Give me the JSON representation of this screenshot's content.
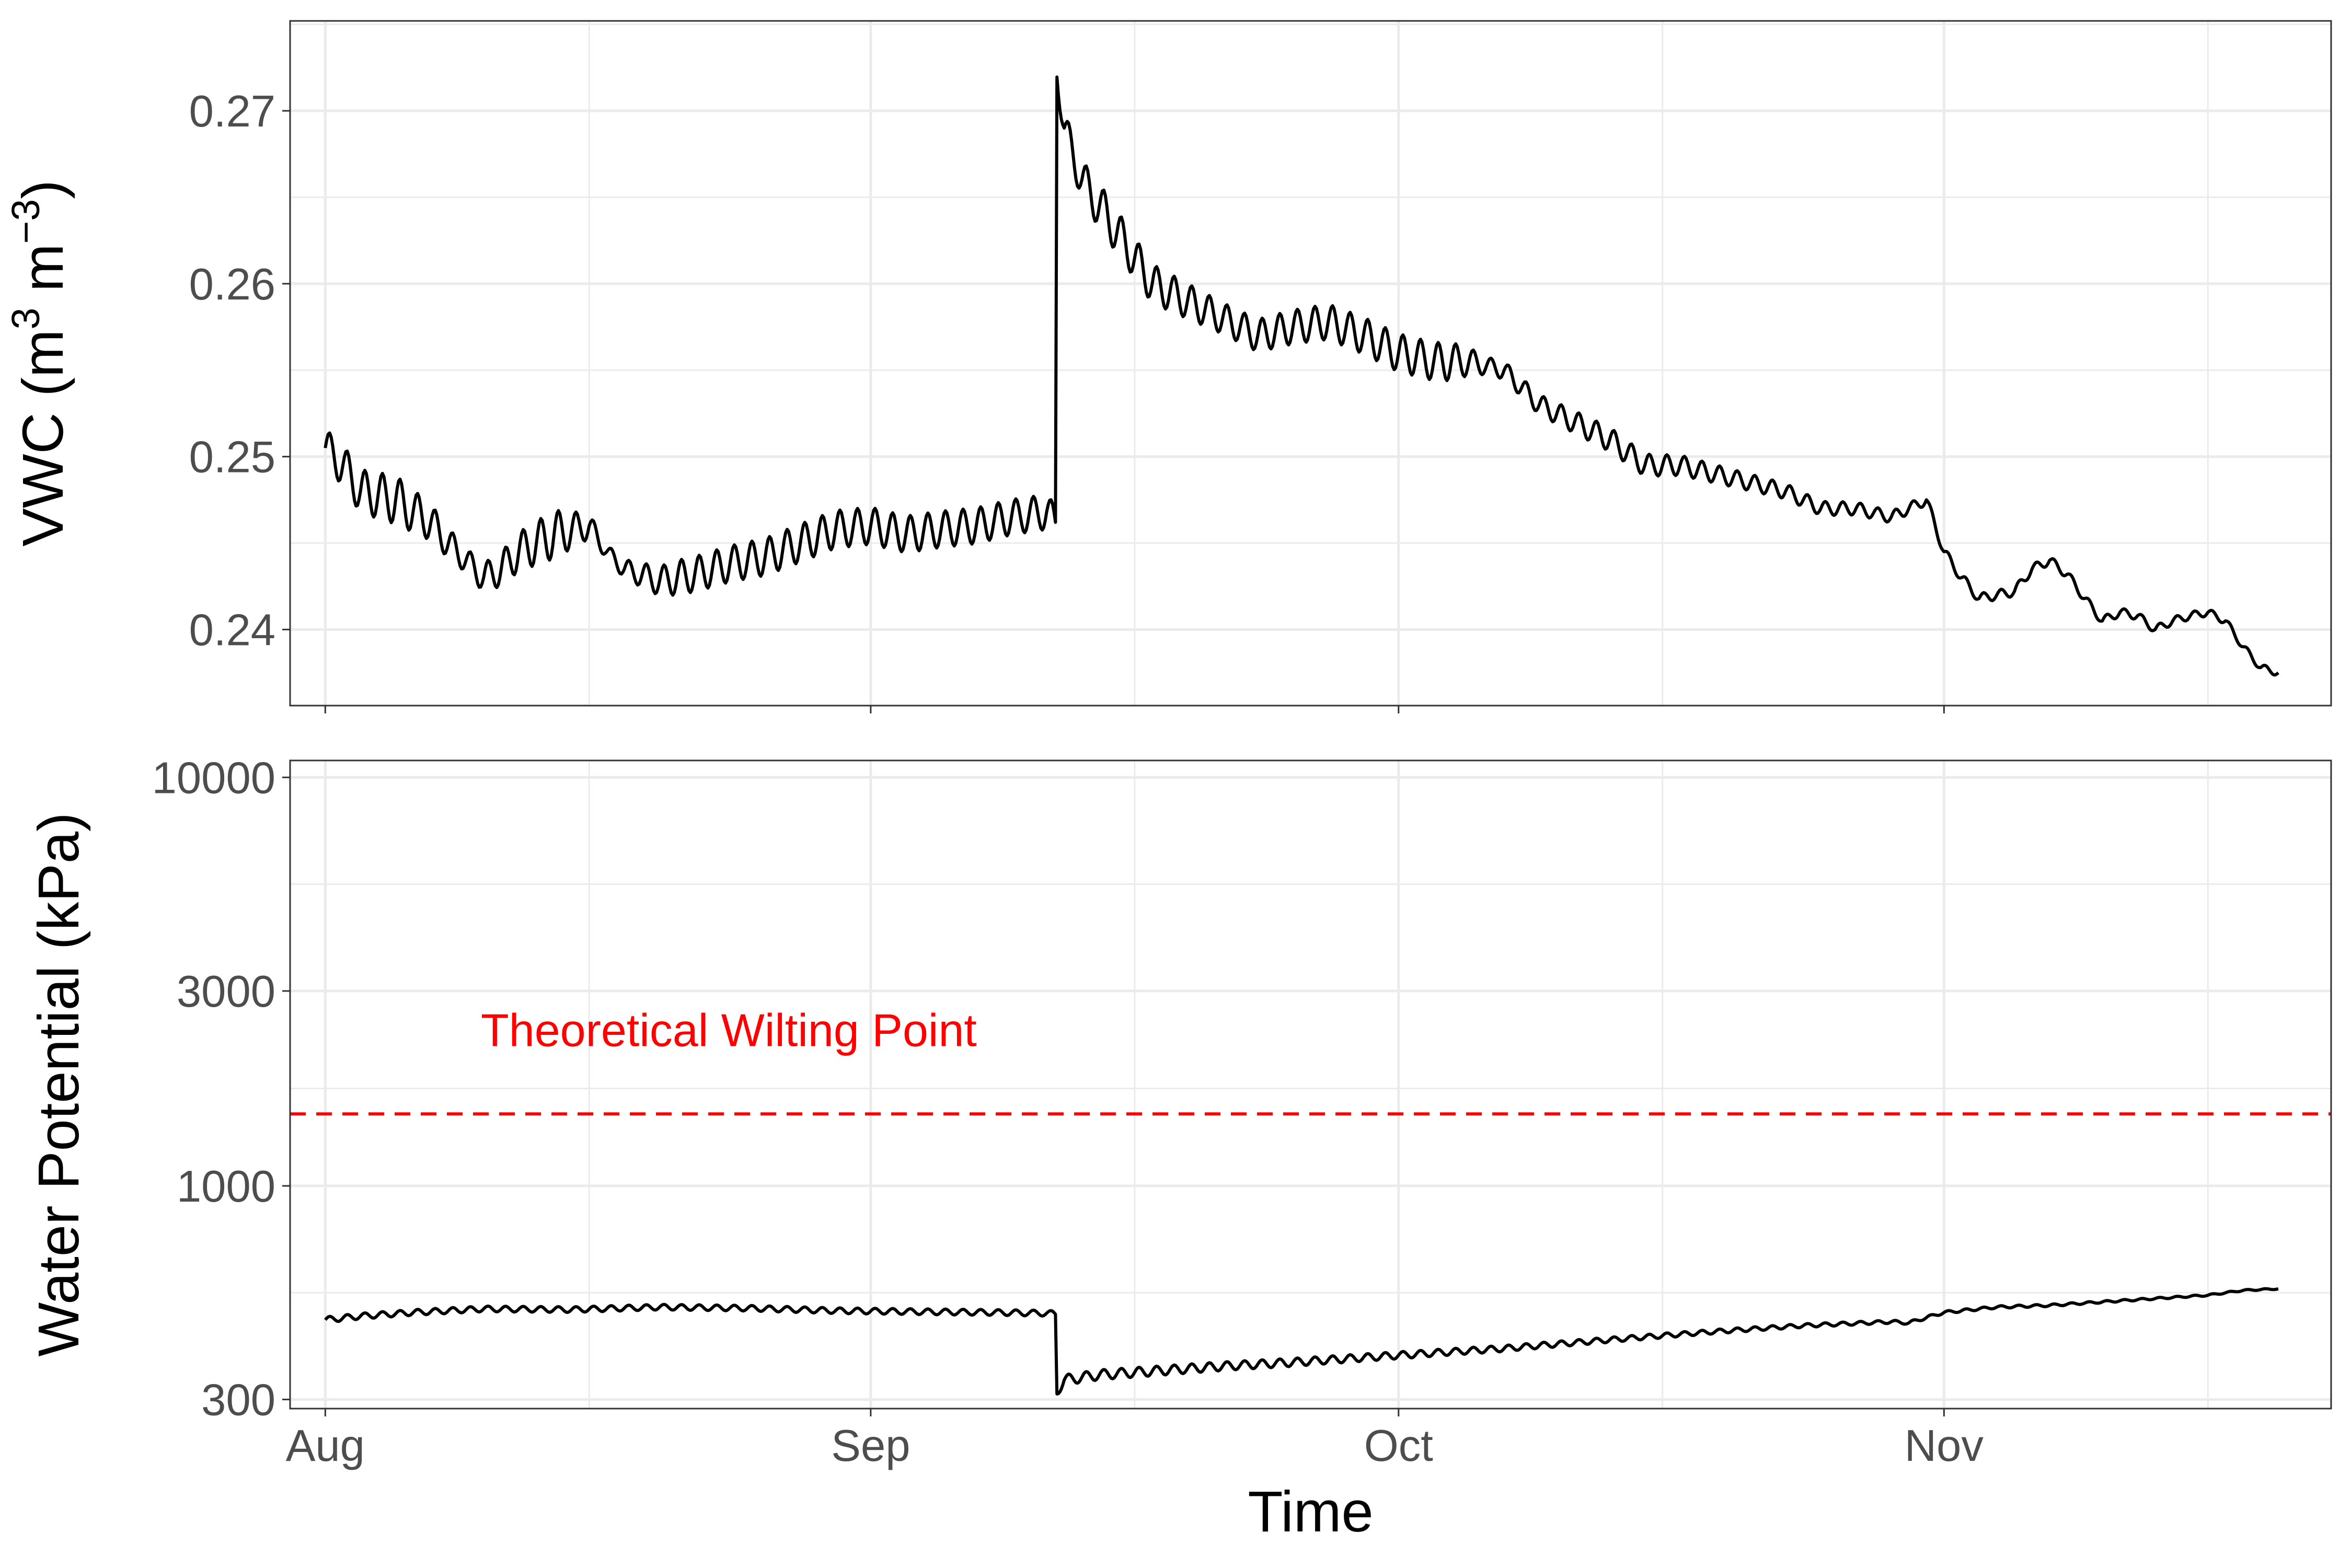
{
  "chart_data": [
    {
      "type": "line",
      "title": "",
      "xlabel": "",
      "ylabel": "VWC (m3 m−3)",
      "ylabel_parts": [
        "VWC (m",
        "3",
        " m",
        "−3",
        ")"
      ],
      "xlim": [
        "2021-07-30",
        "2021-11-23"
      ],
      "ylim": [
        0.2356,
        0.2752
      ],
      "y_ticks": [
        {
          "value": 0.24,
          "label": "0.24"
        },
        {
          "value": 0.25,
          "label": "0.25"
        },
        {
          "value": 0.26,
          "label": "0.26"
        },
        {
          "value": 0.27,
          "label": "0.27"
        }
      ],
      "y_scale": "linear",
      "grid": true,
      "series": [
        {
          "diurnal_amplitude": [
            [
              "2021-08-01",
              0.0011
            ],
            [
              "2021-08-05",
              0.0014
            ],
            [
              "2021-08-09",
              0.0007
            ],
            [
              "2021-08-14",
              0.0014
            ],
            [
              "2021-08-17",
              0.0004
            ],
            [
              "2021-08-21",
              0.001
            ],
            [
              "2021-08-28",
              0.0011
            ],
            [
              "2021-09-12",
              0.001
            ],
            [
              "2021-09-14",
              0.0013
            ],
            [
              "2021-09-21",
              0.0009
            ],
            [
              "2021-10-01",
              0.0011
            ],
            [
              "2021-10-04",
              0.0011
            ],
            [
              "2021-10-06",
              0.0005
            ],
            [
              "2021-10-13",
              0.0007
            ],
            [
              "2021-10-20",
              0.0005
            ],
            [
              "2021-10-31",
              0.0003
            ],
            [
              "2021-11-20",
              0.0002
            ]
          ],
          "values": [
            [
              "2021-08-01",
              0.2505
            ],
            [
              "2021-08-02",
              0.2495
            ],
            [
              "2021-08-03",
              0.248
            ],
            [
              "2021-08-05",
              0.2475
            ],
            [
              "2021-08-07",
              0.2462
            ],
            [
              "2021-08-08",
              0.245
            ],
            [
              "2021-08-09",
              0.244
            ],
            [
              "2021-08-10",
              0.243
            ],
            [
              "2021-08-11",
              0.2435
            ],
            [
              "2021-08-12",
              0.2445
            ],
            [
              "2021-08-14",
              0.2455
            ],
            [
              "2021-08-16",
              0.246
            ],
            [
              "2021-08-17",
              0.2445
            ],
            [
              "2021-08-18",
              0.2435
            ],
            [
              "2021-08-20",
              0.2428
            ],
            [
              "2021-08-22",
              0.2432
            ],
            [
              "2021-08-24",
              0.2438
            ],
            [
              "2021-08-26",
              0.2442
            ],
            [
              "2021-08-28",
              0.245
            ],
            [
              "2021-08-30",
              0.2458
            ],
            [
              "2021-09-01",
              0.246
            ],
            [
              "2021-09-03",
              0.2455
            ],
            [
              "2021-09-05",
              0.2458
            ],
            [
              "2021-09-07",
              0.246
            ],
            [
              "2021-09-09",
              0.2465
            ],
            [
              "2021-09-11",
              0.2468
            ],
            [
              "2021-09-11T12",
              0.2462
            ],
            [
              "2021-09-11T13",
              0.2728
            ],
            [
              "2021-09-12",
              0.269
            ],
            [
              "2021-09-13",
              0.266
            ],
            [
              "2021-09-15",
              0.263
            ],
            [
              "2021-09-17",
              0.26
            ],
            [
              "2021-09-19",
              0.259
            ],
            [
              "2021-09-21",
              0.258
            ],
            [
              "2021-09-23",
              0.257
            ],
            [
              "2021-09-25",
              0.2575
            ],
            [
              "2021-09-27",
              0.2578
            ],
            [
              "2021-09-29",
              0.257
            ],
            [
              "2021-10-01",
              0.256
            ],
            [
              "2021-10-03",
              0.2555
            ],
            [
              "2021-10-05",
              0.2555
            ],
            [
              "2021-10-07",
              0.255
            ],
            [
              "2021-10-09",
              0.253
            ],
            [
              "2021-10-11",
              0.252
            ],
            [
              "2021-10-13",
              0.251
            ],
            [
              "2021-10-15",
              0.2495
            ],
            [
              "2021-10-17",
              0.2495
            ],
            [
              "2021-10-19",
              0.249
            ],
            [
              "2021-10-21",
              0.2485
            ],
            [
              "2021-10-23",
              0.248
            ],
            [
              "2021-10-25",
              0.247
            ],
            [
              "2021-10-27",
              0.247
            ],
            [
              "2021-10-29",
              0.2465
            ],
            [
              "2021-10-30",
              0.247
            ],
            [
              "2021-10-31",
              0.2475
            ],
            [
              "2021-11-01",
              0.2445
            ],
            [
              "2021-11-02",
              0.243
            ],
            [
              "2021-11-03",
              0.2418
            ],
            [
              "2021-11-04",
              0.242
            ],
            [
              "2021-11-05",
              0.2422
            ],
            [
              "2021-11-06",
              0.2435
            ],
            [
              "2021-11-07",
              0.244
            ],
            [
              "2021-11-08",
              0.2432
            ],
            [
              "2021-11-09",
              0.2418
            ],
            [
              "2021-11-10",
              0.2405
            ],
            [
              "2021-11-11",
              0.241
            ],
            [
              "2021-11-12",
              0.2408
            ],
            [
              "2021-11-13",
              0.24
            ],
            [
              "2021-11-14",
              0.2405
            ],
            [
              "2021-11-15",
              0.2408
            ],
            [
              "2021-11-16",
              0.241
            ],
            [
              "2021-11-17",
              0.2405
            ],
            [
              "2021-11-18",
              0.239
            ],
            [
              "2021-11-19",
              0.2378
            ],
            [
              "2021-11-20",
              0.2375
            ]
          ]
        }
      ]
    },
    {
      "type": "line",
      "title": "",
      "xlabel": "Time",
      "ylabel": "Water Potential (kPa)",
      "xlim": [
        "2021-07-30",
        "2021-11-23"
      ],
      "ylim": [
        285,
        11000
      ],
      "y_scale": "log",
      "y_ticks": [
        {
          "value": 300,
          "label": "300"
        },
        {
          "value": 1000,
          "label": "1000"
        },
        {
          "value": 3000,
          "label": "3000"
        },
        {
          "value": 10000,
          "label": "10000"
        }
      ],
      "x_ticks": [
        {
          "value": "2021-08-01",
          "label": "Aug"
        },
        {
          "value": "2021-09-01",
          "label": "Sep"
        },
        {
          "value": "2021-10-01",
          "label": "Oct"
        },
        {
          "value": "2021-11-01",
          "label": "Nov"
        }
      ],
      "grid": true,
      "reference_line": {
        "value": 1500,
        "label": "Theoretical Wilting Point",
        "color": "#ff0000",
        "style": "dashed"
      },
      "series": [
        {
          "diurnal_amplitude": [
            [
              "2021-08-01",
              8
            ],
            [
              "2021-09-11",
              8
            ],
            [
              "2021-09-12",
              10
            ],
            [
              "2021-10-31",
              4
            ],
            [
              "2021-11-20",
              2
            ]
          ],
          "values": [
            [
              "2021-08-01",
              470
            ],
            [
              "2021-08-03",
              480
            ],
            [
              "2021-08-06",
              490
            ],
            [
              "2021-08-10",
              500
            ],
            [
              "2021-08-15",
              498
            ],
            [
              "2021-08-20",
              505
            ],
            [
              "2021-08-25",
              502
            ],
            [
              "2021-08-30",
              495
            ],
            [
              "2021-09-04",
              492
            ],
            [
              "2021-09-08",
              490
            ],
            [
              "2021-09-11",
              488
            ],
            [
              "2021-09-11T12",
              485
            ],
            [
              "2021-09-11T13",
              312
            ],
            [
              "2021-09-12",
              335
            ],
            [
              "2021-09-14",
              345
            ],
            [
              "2021-09-17",
              352
            ],
            [
              "2021-09-21",
              362
            ],
            [
              "2021-09-25",
              370
            ],
            [
              "2021-10-01",
              385
            ],
            [
              "2021-10-07",
              400
            ],
            [
              "2021-10-13",
              420
            ],
            [
              "2021-10-19",
              440
            ],
            [
              "2021-10-24",
              455
            ],
            [
              "2021-10-29",
              465
            ],
            [
              "2021-10-30",
              462
            ],
            [
              "2021-11-01",
              490
            ],
            [
              "2021-11-04",
              505
            ],
            [
              "2021-11-07",
              510
            ],
            [
              "2021-11-10",
              520
            ],
            [
              "2021-11-13",
              530
            ],
            [
              "2021-11-16",
              540
            ],
            [
              "2021-11-18",
              555
            ],
            [
              "2021-11-20",
              560
            ]
          ]
        }
      ]
    }
  ]
}
